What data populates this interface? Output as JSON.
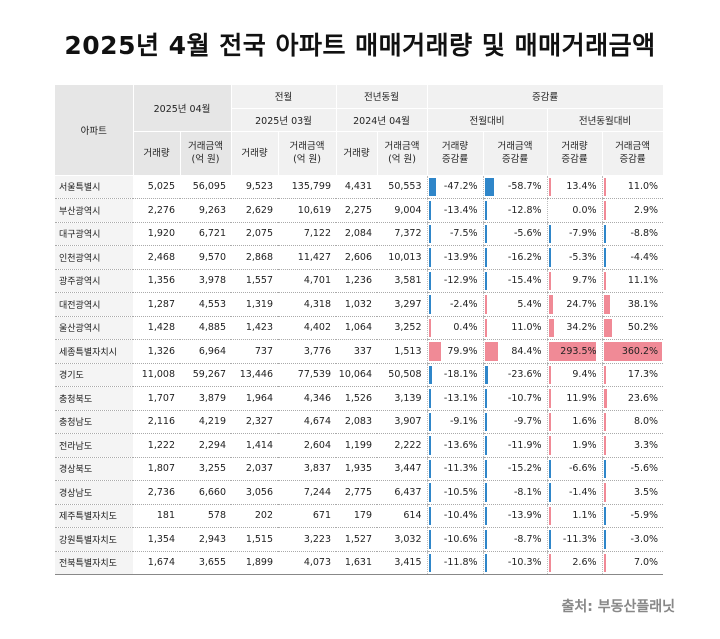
{
  "title": "2025년 4월 전국 아파트 매매거래량 및 매매거래금액",
  "headers": {
    "region": "아파트",
    "current_month": "2025년 04월",
    "prev_month": "전월",
    "prev_year": "전년동월",
    "change": "증감률",
    "prev_month_period": "2025년 03월",
    "prev_year_period": "2024년 04월",
    "mom": "전월대비",
    "yoy": "전년동월대비",
    "volume": "거래량",
    "amount_line1": "거래금액",
    "amount_line2": "(억 원)",
    "vol_rate_line1": "거래량",
    "vol_rate_line2": "증감률",
    "amt_rate_line1": "거래금액",
    "amt_rate_line2": "증감률"
  },
  "colors": {
    "negative_bar": "#2f86c9",
    "positive_bar": "#f08a96",
    "header_bg": "#e6e6e6"
  },
  "rows": [
    {
      "region": "서울특별시",
      "v25": "5,025",
      "a25": "56,095",
      "vpm": "9,523",
      "apm": "135,799",
      "vpy": "4,431",
      "apy": "50,553",
      "mom_v": "-47.2%",
      "mom_a": "-58.7%",
      "yoy_v": "13.4%",
      "yoy_a": "11.0%",
      "mom_v_n": -47.2,
      "mom_a_n": -58.7,
      "yoy_v_n": 13.4,
      "yoy_a_n": 11.0
    },
    {
      "region": "부산광역시",
      "v25": "2,276",
      "a25": "9,263",
      "vpm": "2,629",
      "apm": "10,619",
      "vpy": "2,275",
      "apy": "9,004",
      "mom_v": "-13.4%",
      "mom_a": "-12.8%",
      "yoy_v": "0.0%",
      "yoy_a": "2.9%",
      "mom_v_n": -13.4,
      "mom_a_n": -12.8,
      "yoy_v_n": 0.0,
      "yoy_a_n": 2.9
    },
    {
      "region": "대구광역시",
      "v25": "1,920",
      "a25": "6,721",
      "vpm": "2,075",
      "apm": "7,122",
      "vpy": "2,084",
      "apy": "7,372",
      "mom_v": "-7.5%",
      "mom_a": "-5.6%",
      "yoy_v": "-7.9%",
      "yoy_a": "-8.8%",
      "mom_v_n": -7.5,
      "mom_a_n": -5.6,
      "yoy_v_n": -7.9,
      "yoy_a_n": -8.8
    },
    {
      "region": "인천광역시",
      "v25": "2,468",
      "a25": "9,570",
      "vpm": "2,868",
      "apm": "11,427",
      "vpy": "2,606",
      "apy": "10,013",
      "mom_v": "-13.9%",
      "mom_a": "-16.2%",
      "yoy_v": "-5.3%",
      "yoy_a": "-4.4%",
      "mom_v_n": -13.9,
      "mom_a_n": -16.2,
      "yoy_v_n": -5.3,
      "yoy_a_n": -4.4
    },
    {
      "region": "광주광역시",
      "v25": "1,356",
      "a25": "3,978",
      "vpm": "1,557",
      "apm": "4,701",
      "vpy": "1,236",
      "apy": "3,581",
      "mom_v": "-12.9%",
      "mom_a": "-15.4%",
      "yoy_v": "9.7%",
      "yoy_a": "11.1%",
      "mom_v_n": -12.9,
      "mom_a_n": -15.4,
      "yoy_v_n": 9.7,
      "yoy_a_n": 11.1
    },
    {
      "region": "대전광역시",
      "v25": "1,287",
      "a25": "4,553",
      "vpm": "1,319",
      "apm": "4,318",
      "vpy": "1,032",
      "apy": "3,297",
      "mom_v": "-2.4%",
      "mom_a": "5.4%",
      "yoy_v": "24.7%",
      "yoy_a": "38.1%",
      "mom_v_n": -2.4,
      "mom_a_n": 5.4,
      "yoy_v_n": 24.7,
      "yoy_a_n": 38.1
    },
    {
      "region": "울산광역시",
      "v25": "1,428",
      "a25": "4,885",
      "vpm": "1,423",
      "apm": "4,402",
      "vpy": "1,064",
      "apy": "3,252",
      "mom_v": "0.4%",
      "mom_a": "11.0%",
      "yoy_v": "34.2%",
      "yoy_a": "50.2%",
      "mom_v_n": 0.4,
      "mom_a_n": 11.0,
      "yoy_v_n": 34.2,
      "yoy_a_n": 50.2
    },
    {
      "region": "세종특별자치시",
      "v25": "1,326",
      "a25": "6,964",
      "vpm": "737",
      "apm": "3,776",
      "vpy": "337",
      "apy": "1,513",
      "mom_v": "79.9%",
      "mom_a": "84.4%",
      "yoy_v": "293.5%",
      "yoy_a": "360.2%",
      "mom_v_n": 79.9,
      "mom_a_n": 84.4,
      "yoy_v_n": 293.5,
      "yoy_a_n": 360.2
    },
    {
      "region": "경기도",
      "v25": "11,008",
      "a25": "59,267",
      "vpm": "13,446",
      "apm": "77,539",
      "vpy": "10,064",
      "apy": "50,508",
      "mom_v": "-18.1%",
      "mom_a": "-23.6%",
      "yoy_v": "9.4%",
      "yoy_a": "17.3%",
      "mom_v_n": -18.1,
      "mom_a_n": -23.6,
      "yoy_v_n": 9.4,
      "yoy_a_n": 17.3
    },
    {
      "region": "충청북도",
      "v25": "1,707",
      "a25": "3,879",
      "vpm": "1,964",
      "apm": "4,346",
      "vpy": "1,526",
      "apy": "3,139",
      "mom_v": "-13.1%",
      "mom_a": "-10.7%",
      "yoy_v": "11.9%",
      "yoy_a": "23.6%",
      "mom_v_n": -13.1,
      "mom_a_n": -10.7,
      "yoy_v_n": 11.9,
      "yoy_a_n": 23.6
    },
    {
      "region": "충청남도",
      "v25": "2,116",
      "a25": "4,219",
      "vpm": "2,327",
      "apm": "4,674",
      "vpy": "2,083",
      "apy": "3,907",
      "mom_v": "-9.1%",
      "mom_a": "-9.7%",
      "yoy_v": "1.6%",
      "yoy_a": "8.0%",
      "mom_v_n": -9.1,
      "mom_a_n": -9.7,
      "yoy_v_n": 1.6,
      "yoy_a_n": 8.0
    },
    {
      "region": "전라남도",
      "v25": "1,222",
      "a25": "2,294",
      "vpm": "1,414",
      "apm": "2,604",
      "vpy": "1,199",
      "apy": "2,222",
      "mom_v": "-13.6%",
      "mom_a": "-11.9%",
      "yoy_v": "1.9%",
      "yoy_a": "3.3%",
      "mom_v_n": -13.6,
      "mom_a_n": -11.9,
      "yoy_v_n": 1.9,
      "yoy_a_n": 3.3
    },
    {
      "region": "경상북도",
      "v25": "1,807",
      "a25": "3,255",
      "vpm": "2,037",
      "apm": "3,837",
      "vpy": "1,935",
      "apy": "3,447",
      "mom_v": "-11.3%",
      "mom_a": "-15.2%",
      "yoy_v": "-6.6%",
      "yoy_a": "-5.6%",
      "mom_v_n": -11.3,
      "mom_a_n": -15.2,
      "yoy_v_n": -6.6,
      "yoy_a_n": -5.6
    },
    {
      "region": "경상남도",
      "v25": "2,736",
      "a25": "6,660",
      "vpm": "3,056",
      "apm": "7,244",
      "vpy": "2,775",
      "apy": "6,437",
      "mom_v": "-10.5%",
      "mom_a": "-8.1%",
      "yoy_v": "-1.4%",
      "yoy_a": "3.5%",
      "mom_v_n": -10.5,
      "mom_a_n": -8.1,
      "yoy_v_n": -1.4,
      "yoy_a_n": 3.5
    },
    {
      "region": "제주특별자치도",
      "v25": "181",
      "a25": "578",
      "vpm": "202",
      "apm": "671",
      "vpy": "179",
      "apy": "614",
      "mom_v": "-10.4%",
      "mom_a": "-13.9%",
      "yoy_v": "1.1%",
      "yoy_a": "-5.9%",
      "mom_v_n": -10.4,
      "mom_a_n": -13.9,
      "yoy_v_n": 1.1,
      "yoy_a_n": -5.9
    },
    {
      "region": "강원특별자치도",
      "v25": "1,354",
      "a25": "2,943",
      "vpm": "1,515",
      "apm": "3,223",
      "vpy": "1,527",
      "apy": "3,032",
      "mom_v": "-10.6%",
      "mom_a": "-8.7%",
      "yoy_v": "-11.3%",
      "yoy_a": "-3.0%",
      "mom_v_n": -10.6,
      "mom_a_n": -8.7,
      "yoy_v_n": -11.3,
      "yoy_a_n": -3.0
    },
    {
      "region": "전북특별자치도",
      "v25": "1,674",
      "a25": "3,655",
      "vpm": "1,899",
      "apm": "4,073",
      "vpy": "1,631",
      "apy": "3,415",
      "mom_v": "-11.8%",
      "mom_a": "-10.3%",
      "yoy_v": "2.6%",
      "yoy_a": "7.0%",
      "mom_v_n": -11.8,
      "mom_a_n": -10.3,
      "yoy_v_n": 2.6,
      "yoy_a_n": 7.0
    }
  ],
  "source": "출처: 부동산플래닛"
}
